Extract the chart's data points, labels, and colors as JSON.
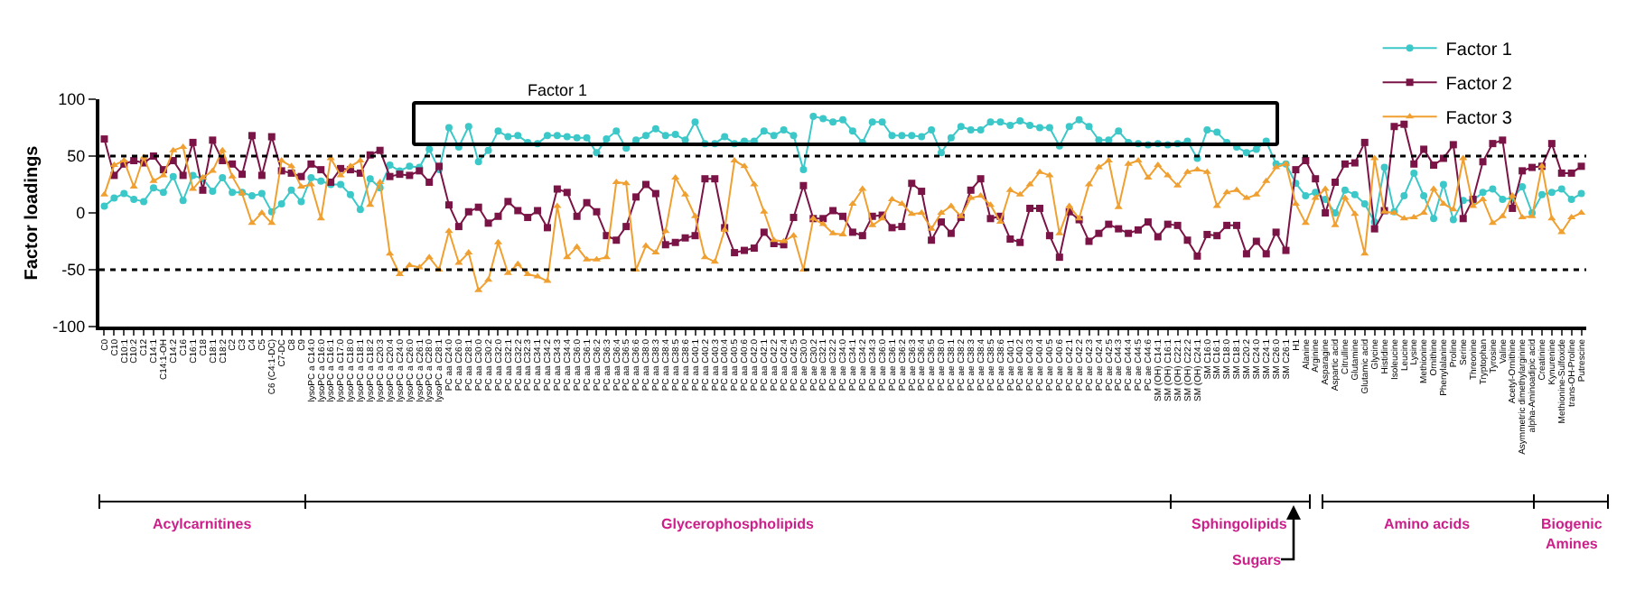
{
  "chart_data": {
    "type": "line",
    "ylabel": "Factor loadings",
    "ylim": [
      -100,
      100
    ],
    "yticks": [
      -100,
      -50,
      0,
      50,
      100
    ],
    "grid": false,
    "legend": "top right",
    "categories": [
      "C0",
      "C10",
      "C10:1",
      "C10:2",
      "C12",
      "C14:1",
      "C14:1-OH",
      "C14:2",
      "C16",
      "C16:1",
      "C18",
      "C18:1",
      "C18:2",
      "C2",
      "C3",
      "C4",
      "C5",
      "C6 (C4:1-DC)",
      "C7-DC",
      "C8",
      "C9",
      "lysoPC a C14:0",
      "lysoPC a C16:0",
      "lysoPC a C16:1",
      "lysoPC a C17:0",
      "lysoPC a C18:0",
      "lysoPC a C18:1",
      "lysoPC a C18:2",
      "lysoPC a C20:3",
      "lysoPC a C20:4",
      "lysoPC a C24:0",
      "lysoPC a C26:0",
      "lysoPC a C26:1",
      "lysoPC a C28:0",
      "lysoPC a C28:1",
      "PC aa C24:0",
      "PC aa C26:0",
      "PC aa C28:1",
      "PC aa C30:0",
      "PC aa C30:2",
      "PC aa C32:0",
      "PC aa C32:1",
      "PC aa C32:2",
      "PC aa C32:3",
      "PC aa C34:1",
      "PC aa C34:2",
      "PC aa C34:3",
      "PC aa C34:4",
      "PC aa C36:0",
      "PC aa C36:1",
      "PC aa C36:2",
      "PC aa C36:3",
      "PC aa C36:4",
      "PC aa C36:5",
      "PC aa C36:6",
      "PC aa C38:0",
      "PC aa C38:3",
      "PC aa C38:4",
      "PC aa C38:5",
      "PC aa C38:6",
      "PC aa C40:1",
      "PC aa C40:2",
      "PC aa C40:3",
      "PC aa C40:4",
      "PC aa C40:5",
      "PC aa C40:6",
      "PC aa C42:0",
      "PC aa C42:1",
      "PC aa C42:2",
      "PC aa C42:4",
      "PC aa C42:5",
      "PC ae C30:0",
      "PC ae C30:2",
      "PC ae C32:1",
      "PC ae C32:2",
      "PC ae C34:0",
      "PC ae C34:1",
      "PC ae C34:2",
      "PC ae C34:3",
      "PC ae C36:0",
      "PC ae C36:1",
      "PC ae C36:2",
      "PC ae C36:3",
      "PC ae C36:4",
      "PC ae C36:5",
      "PC ae C38:0",
      "PC ae C38:1",
      "PC ae C38:2",
      "PC ae C38:3",
      "PC ae C38:4",
      "PC ae C38:5",
      "PC ae C38:6",
      "PC ae C40:1",
      "PC ae C40:2",
      "PC ae C40:3",
      "PC ae C40:4",
      "PC ae C40:5",
      "PC ae C40:6",
      "PC ae C42:1",
      "PC ae C42:2",
      "PC ae C42:3",
      "PC ae C42:4",
      "PC ae C42:5",
      "PC ae C44:3",
      "PC ae C44:4",
      "PC ae C44:5",
      "PC ae C44:6",
      "SM (OH) C14:1",
      "SM (OH) C16:1",
      "SM (OH) C22:1",
      "SM (OH) C22:2",
      "SM (OH) C24:1",
      "SM C16:0",
      "SM C16:1",
      "SM C18:0",
      "SM C18:1",
      "SM C20:2",
      "SM C24:0",
      "SM C24:1",
      "SM C26:0",
      "SM C26:1",
      "H1",
      "Alanine",
      "Arginine",
      "Asparagine",
      "Aspartic acid",
      "Citrulline",
      "Glutamine",
      "Glutamic acid",
      "Glycine",
      "Histidine",
      "Isoleucine",
      "Leucine",
      "Lysine",
      "Methionine",
      "Ornithine",
      "Phenylalanine",
      "Proline",
      "Serine",
      "Threonine",
      "Tryptophan",
      "Tyrosine",
      "Valine",
      "Acetyl-Ornithine",
      "Asymmetric dimethylarginine",
      "alpha-Aminoadipic acid",
      "Creatinine",
      "Kynurenine",
      "Methionine-Sulfoxide",
      "trans-OH-Proline",
      "Putrescine"
    ],
    "series": [
      {
        "name": "Factor 1",
        "color": "#3cc8c8",
        "marker": "circle",
        "values": [
          6,
          13,
          17,
          12,
          10,
          22,
          18,
          32,
          11,
          33,
          30,
          19,
          31,
          18,
          18,
          15,
          17,
          1,
          8,
          20,
          10,
          31,
          28,
          25,
          25,
          16,
          3,
          30,
          22,
          42,
          37,
          41,
          40,
          56,
          38,
          75,
          58,
          76,
          45,
          55,
          72,
          67,
          68,
          62,
          61,
          68,
          68,
          67,
          66,
          66,
          53,
          65,
          72,
          57,
          64,
          68,
          74,
          68,
          69,
          64,
          80,
          61,
          61,
          67,
          61,
          63,
          63,
          72,
          68,
          73,
          68,
          38,
          85,
          83,
          80,
          82,
          72,
          62,
          80,
          80,
          68,
          68,
          68,
          67,
          73,
          53,
          66,
          76,
          73,
          73,
          80,
          80,
          77,
          81,
          77,
          75,
          75,
          59,
          76,
          82,
          76,
          64,
          64,
          72,
          62,
          61,
          60,
          61,
          60,
          61,
          63,
          48,
          73,
          71,
          62,
          58,
          53,
          56,
          63,
          43,
          43,
          26,
          15,
          18,
          12,
          0,
          20,
          16,
          8,
          -8,
          40,
          1,
          15,
          35,
          15,
          -5,
          25,
          -6,
          11,
          11,
          18,
          21,
          12,
          13,
          23,
          0,
          16,
          18,
          21,
          12,
          17
        ]
      },
      {
        "name": "Factor 2",
        "color": "#7b1446",
        "marker": "square",
        "values": [
          65,
          33,
          43,
          46,
          44,
          50,
          38,
          46,
          33,
          62,
          20,
          64,
          46,
          43,
          34,
          68,
          33,
          67,
          37,
          35,
          32,
          43,
          38,
          27,
          39,
          38,
          35,
          51,
          55,
          32,
          34,
          33,
          37,
          27,
          41,
          7,
          -12,
          1,
          5,
          -9,
          -3,
          10,
          2,
          -4,
          2,
          -13,
          21,
          18,
          -3,
          9,
          1,
          -20,
          -24,
          -12,
          14,
          25,
          17,
          -28,
          -26,
          -22,
          -20,
          30,
          30,
          -13,
          -35,
          -33,
          -31,
          -17,
          -27,
          -28,
          -4,
          24,
          -5,
          -5,
          2,
          -3,
          -17,
          -20,
          -3,
          -2,
          -13,
          -12,
          26,
          19,
          -24,
          -8,
          -18,
          -4,
          20,
          30,
          -5,
          -3,
          -23,
          -26,
          4,
          4,
          -20,
          -39,
          1,
          -6,
          -25,
          -18,
          -10,
          -14,
          -18,
          -15,
          -8,
          -21,
          -10,
          -11,
          -24,
          -38,
          -19,
          -20,
          -11,
          -11,
          -36,
          -25,
          -36,
          -17,
          -33,
          38,
          46,
          30,
          0,
          27,
          43,
          44,
          62,
          -14,
          2,
          76,
          78,
          43,
          56,
          42,
          48,
          60,
          -5,
          12,
          45,
          61,
          64,
          4,
          37,
          40,
          41,
          61,
          35,
          35,
          41
        ]
      },
      {
        "name": "Factor 3",
        "color": "#f0a030",
        "marker": "triangle",
        "values": [
          16,
          42,
          46,
          23,
          49,
          28,
          33,
          55,
          58,
          21,
          31,
          37,
          55,
          32,
          17,
          -9,
          0,
          -9,
          46,
          41,
          23,
          25,
          -5,
          48,
          33,
          41,
          46,
          7,
          27,
          -36,
          -54,
          -46,
          -48,
          -39,
          -50,
          -16,
          -44,
          -35,
          -68,
          -59,
          -26,
          -53,
          -45,
          -54,
          -56,
          -60,
          6,
          -39,
          -30,
          -41,
          -41,
          -39,
          27,
          26,
          -50,
          -29,
          -35,
          -16,
          31,
          16,
          -3,
          -39,
          -43,
          -15,
          46,
          41,
          25,
          1,
          -24,
          -25,
          -20,
          -50,
          -5,
          -10,
          -18,
          -19,
          8,
          21,
          -11,
          -5,
          12,
          8,
          -1,
          0,
          -14,
          0,
          6,
          -3,
          13,
          15,
          7,
          -8,
          20,
          16,
          25,
          36,
          33,
          -18,
          6,
          -5,
          25,
          40,
          46,
          5,
          43,
          46,
          31,
          42,
          33,
          24,
          36,
          38,
          36,
          6,
          18,
          20,
          13,
          16,
          28,
          40,
          43,
          8,
          -9,
          13,
          21,
          -11,
          13,
          -1,
          -36,
          48,
          1,
          0,
          -5,
          -4,
          0,
          21,
          8,
          3,
          48,
          6,
          12,
          -9,
          -3,
          15,
          -4,
          -3,
          41,
          -5,
          -17,
          -4,
          0
        ]
      }
    ],
    "ref_lines": [
      {
        "axis": "y",
        "value": 50,
        "line_style": "dotted",
        "color": "#000000"
      },
      {
        "axis": "y",
        "value": -50,
        "line_style": "dotted",
        "color": "#000000"
      }
    ],
    "annotations": [
      "Factor 1",
      "Acylcarnitines",
      "Glycerophospholipids",
      "Sphingolipids",
      "Amino acids",
      "Biogenic Amines",
      "Sugars"
    ]
  }
}
